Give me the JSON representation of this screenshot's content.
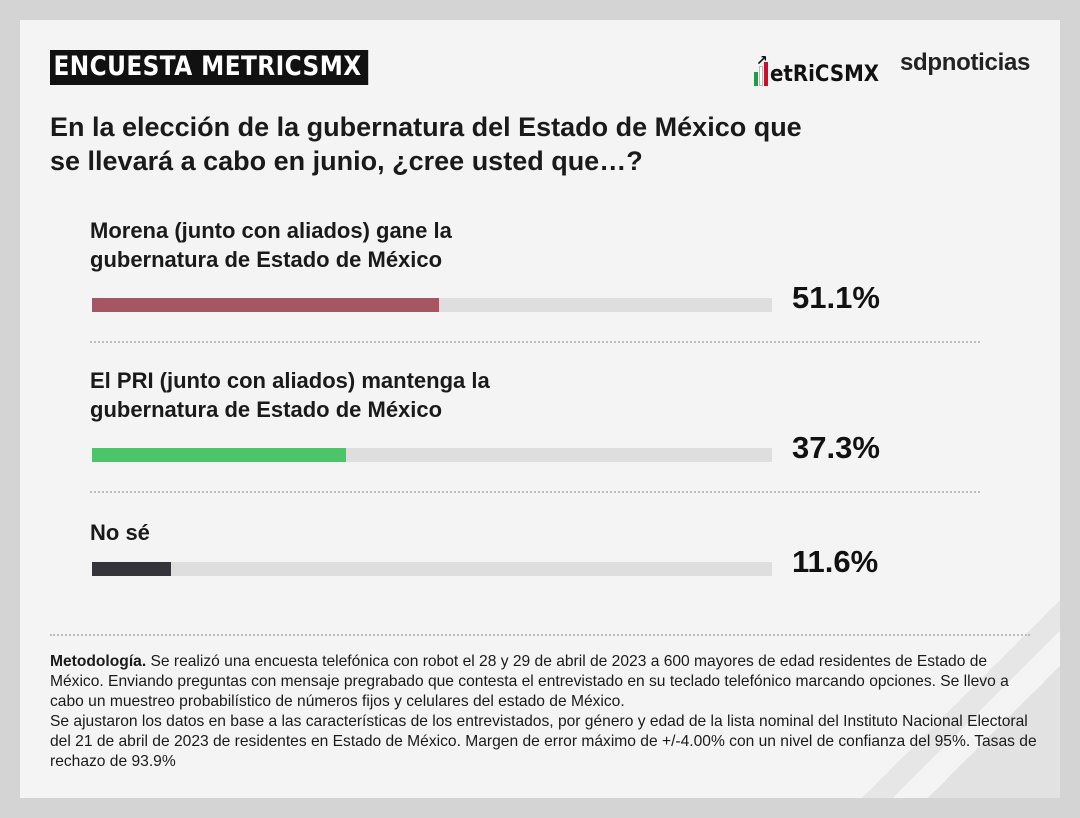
{
  "header": {
    "badge": "ENCUESTA METRICSMX",
    "logo_metrics": "etRiCSMX",
    "logo_sdp": "sdpnoticias"
  },
  "question": "En la elección de la gubernatura del Estado de México que se llevará a cabo en junio, ¿cree usted que…?",
  "chart_data": {
    "type": "bar",
    "orientation": "horizontal",
    "categories": [
      "Morena (junto con aliados) gane la gubernatura de Estado de México",
      "El PRI (junto con aliados) mantenga la gubernatura de Estado de México",
      "No sé"
    ],
    "values": [
      51.1,
      37.3,
      11.6
    ],
    "value_labels": [
      "51.1%",
      "37.3%",
      "11.6%"
    ],
    "colors": [
      "#a65563",
      "#4cc46a",
      "#35343a"
    ],
    "track_color": "#dedede",
    "xlim": [
      0,
      100
    ],
    "grid": false,
    "legend": "none"
  },
  "methodology": {
    "label": "Metodología.",
    "text": " Se realizó una encuesta telefónica con robot el 28 y 29 de abril de 2023 a 600 mayores de edad residentes de Estado de México. Enviando preguntas con mensaje pregrabado que contesta el entrevistado en su teclado telefónico marcando opciones. Se llevo a cabo un muestreo probabilístico de números fijos y celulares del estado de México.",
    "text2": "Se ajustaron los datos en base a las características de los entrevistados, por género y edad de la lista nominal del Instituto Nacional Electoral del 21 de abril de 2023 de residentes en Estado de México. Margen de error máximo de +/-4.00% con un nivel de confianza del 95%. Tasas de rechazo de 93.9%"
  }
}
